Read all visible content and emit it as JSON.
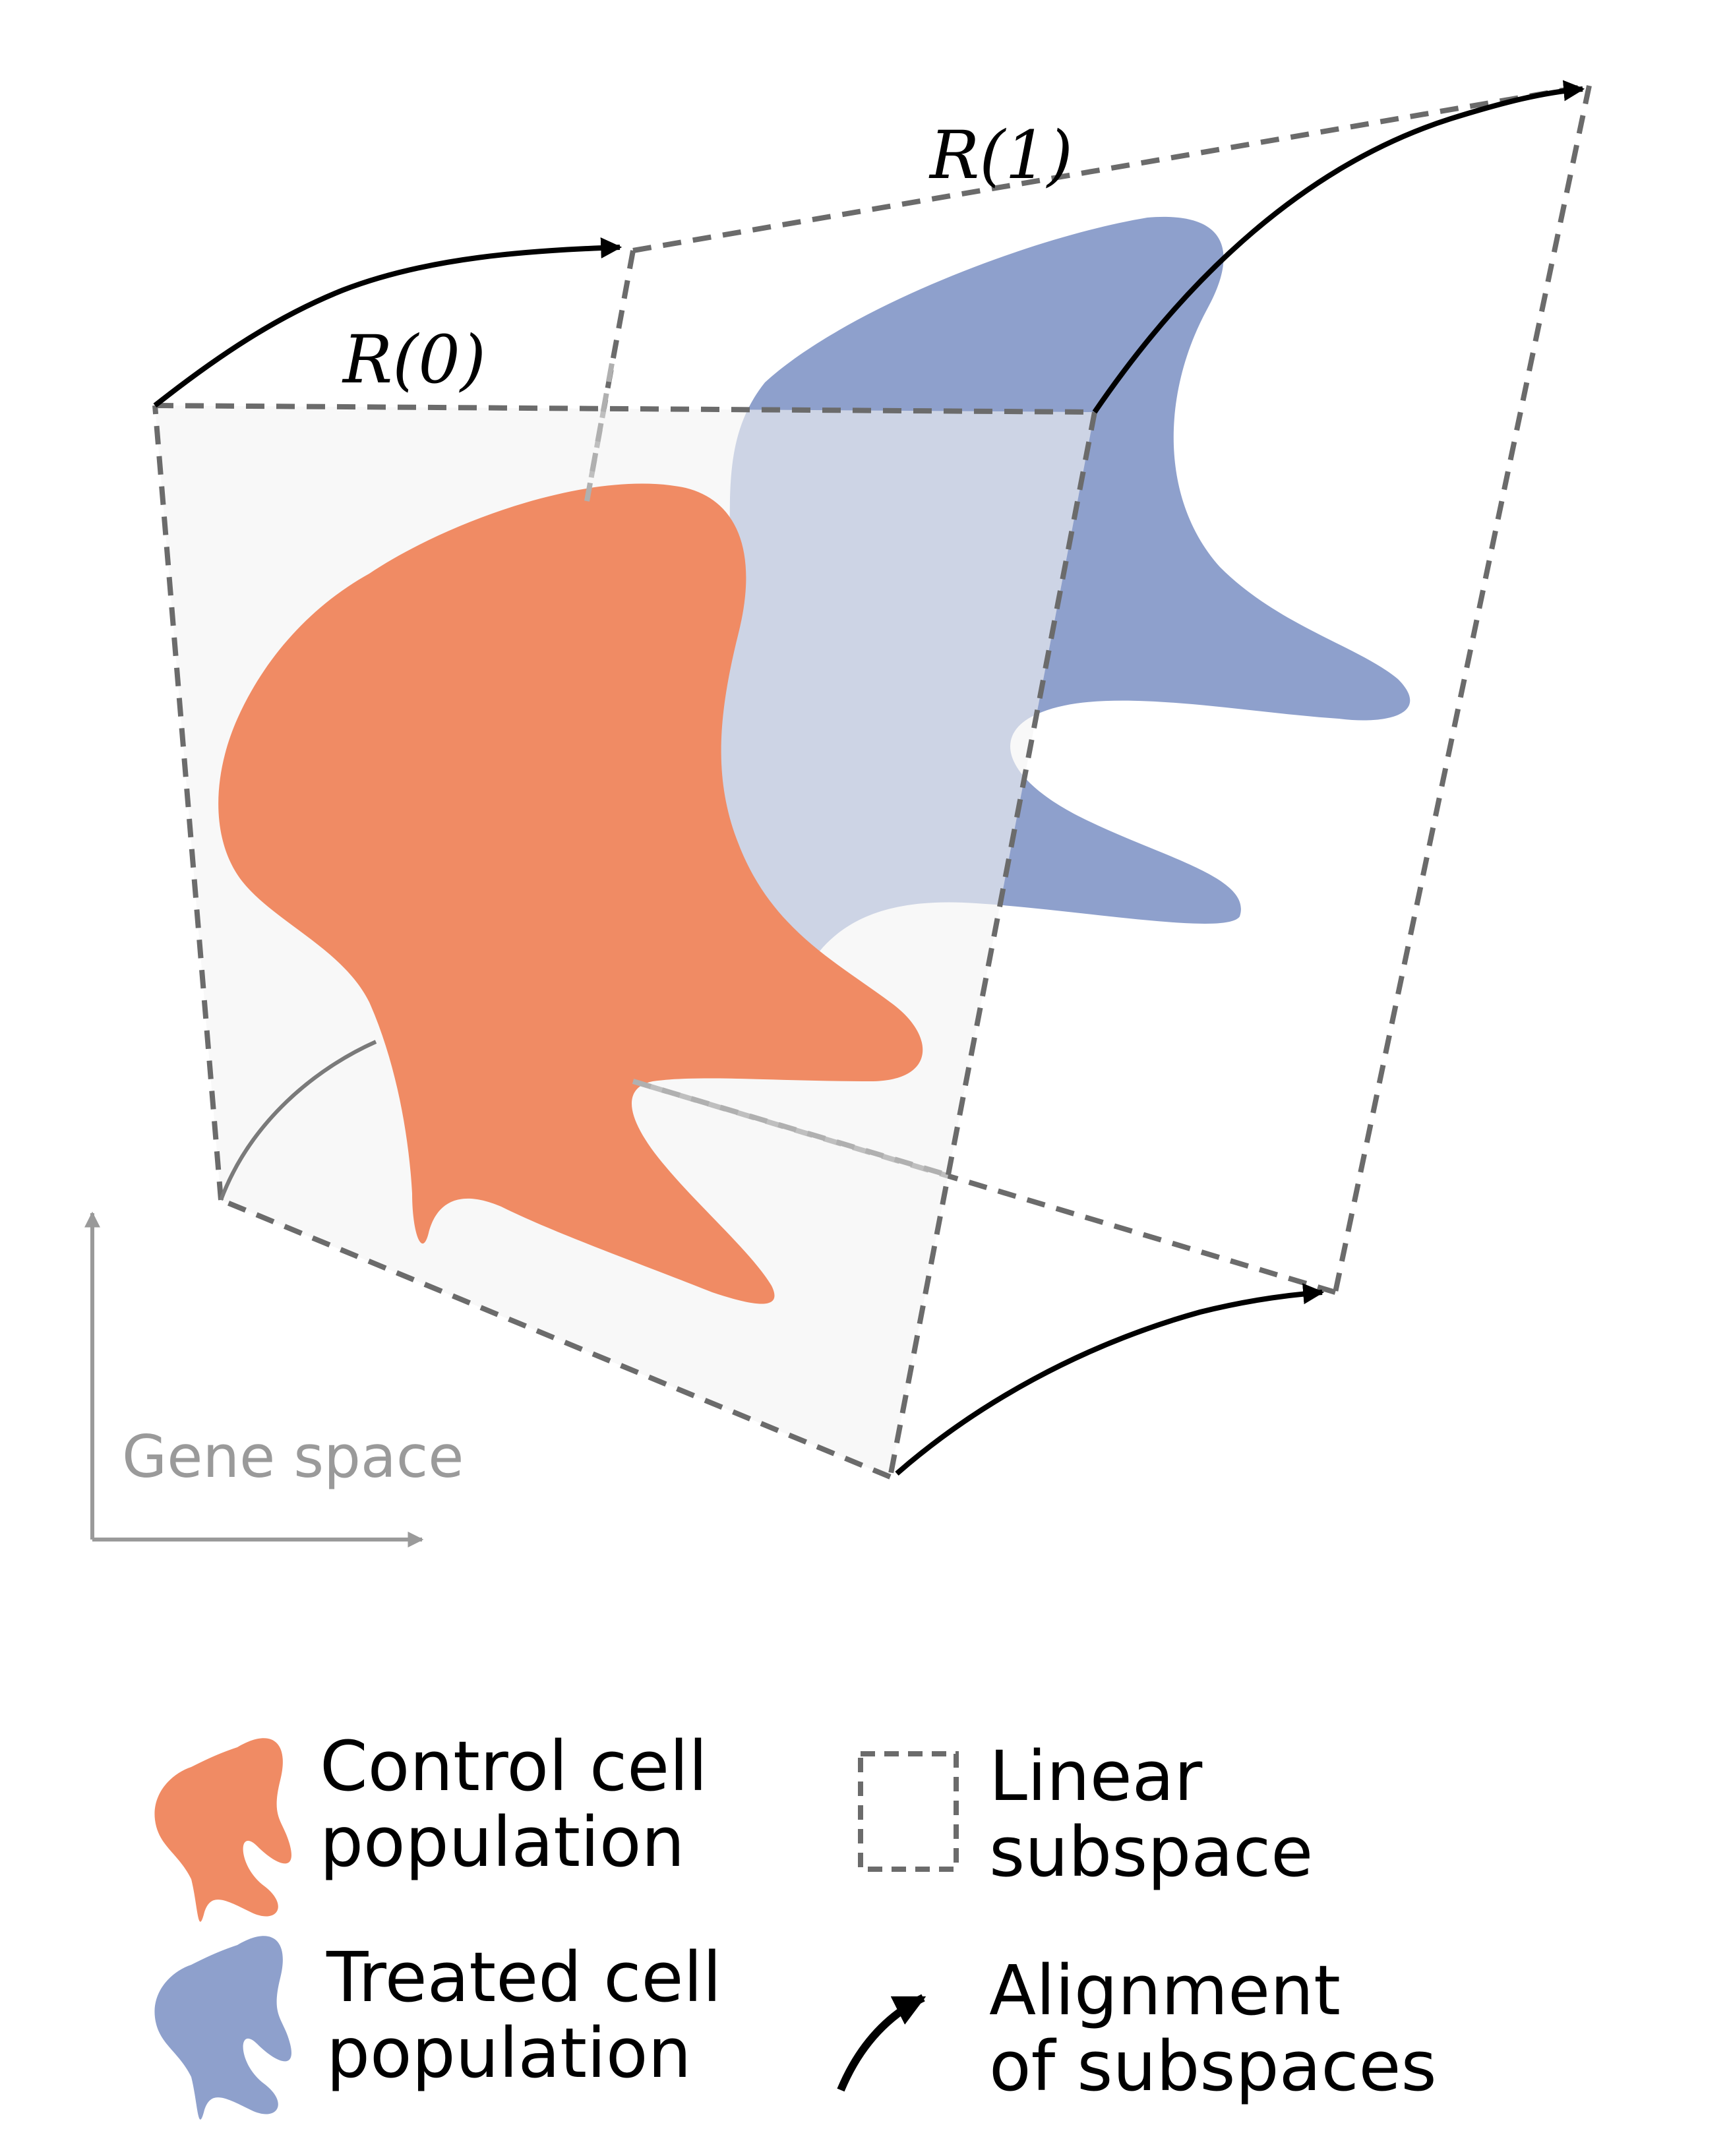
{
  "diagram": {
    "labels": {
      "r0": "R(0)",
      "r1": "R(1)",
      "gene_space": "Gene space"
    },
    "colors": {
      "control": "#f08b64",
      "treated": "#8ea0cc",
      "treated_light": "#b9c2df",
      "plane_fill": "#f8f8f8",
      "dashed": "#6b6b6b",
      "axis_gray": "#9a9a9a",
      "arrow": "#000000"
    }
  },
  "legend": {
    "control_line1": "Control cell",
    "control_line2": "population",
    "treated_line1": "Treated cell",
    "treated_line2": "population",
    "linear_line1": "Linear",
    "linear_line2": "subspace",
    "alignment_line1": "Alignment",
    "alignment_line2": "of subspaces"
  }
}
